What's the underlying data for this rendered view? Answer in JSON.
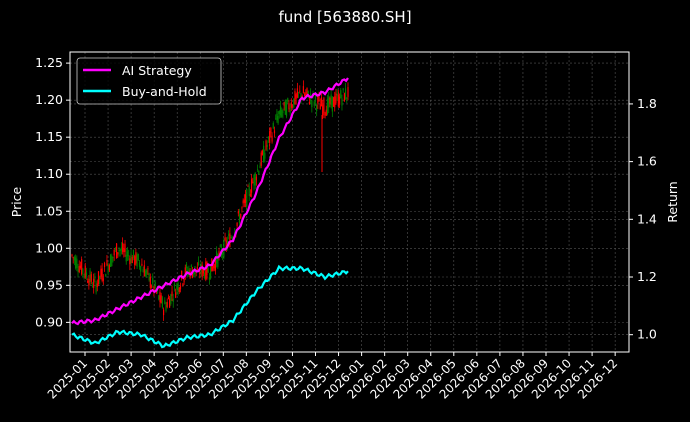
{
  "title": "fund [563880.SH]",
  "colors": {
    "background": "#000000",
    "ai_strategy": "#ff00ff",
    "buy_and_hold": "#00ffff",
    "candle_up": "#ff0000",
    "candle_down": "#008000",
    "axis": "#ffffff",
    "grid": "#555555"
  },
  "legend": {
    "items": [
      {
        "label": "AI Strategy",
        "color": "#ff00ff"
      },
      {
        "label": "Buy-and-Hold",
        "color": "#00ffff"
      }
    ]
  },
  "chart_data": {
    "type": "line",
    "title": "fund [563880.SH]",
    "xlabel": "",
    "ylabel": "Price",
    "ylabel_right": "Return",
    "grid": true,
    "legend_position": "upper left",
    "x_ticks": [
      "2025-01",
      "2025-02",
      "2025-03",
      "2025-04",
      "2025-05",
      "2025-06",
      "2025-07",
      "2025-08",
      "2025-09",
      "2025-10",
      "2025-11",
      "2025-12",
      "2026-01",
      "2026-02",
      "2026-03",
      "2026-04",
      "2026-05",
      "2026-06",
      "2026-07",
      "2026-08",
      "2026-09",
      "2026-10",
      "2026-11",
      "2026-12"
    ],
    "y_ticks_left": [
      "0.90",
      "0.95",
      "1.00",
      "1.05",
      "1.10",
      "1.15",
      "1.20",
      "1.25"
    ],
    "y_ticks_right": [
      "1.0",
      "1.2",
      "1.4",
      "1.6",
      "1.8"
    ],
    "ylim_left": [
      0.86,
      1.265
    ],
    "ylim_right": [
      0.94,
      1.98
    ],
    "x": [
      "2025-01",
      "2025-02",
      "2025-03",
      "2025-04",
      "2025-05",
      "2025-06",
      "2025-07",
      "2025-08",
      "2025-09",
      "2025-10",
      "2025-11",
      "2025-12",
      "2025-12-10"
    ],
    "price_candles_approx_close": [
      0.99,
      0.95,
      1.0,
      0.98,
      0.92,
      0.97,
      0.97,
      1.02,
      1.1,
      1.18,
      1.21,
      1.19,
      1.21
    ],
    "series": [
      {
        "name": "AI Strategy",
        "axis": "right",
        "values": [
          1.04,
          1.05,
          1.09,
          1.13,
          1.17,
          1.21,
          1.24,
          1.33,
          1.49,
          1.68,
          1.82,
          1.84,
          1.89
        ]
      },
      {
        "name": "Buy-and-Hold",
        "axis": "right",
        "values": [
          1.0,
          0.97,
          1.01,
          1.0,
          0.96,
          0.99,
          1.0,
          1.05,
          1.15,
          1.23,
          1.23,
          1.2,
          1.22
        ]
      }
    ]
  }
}
